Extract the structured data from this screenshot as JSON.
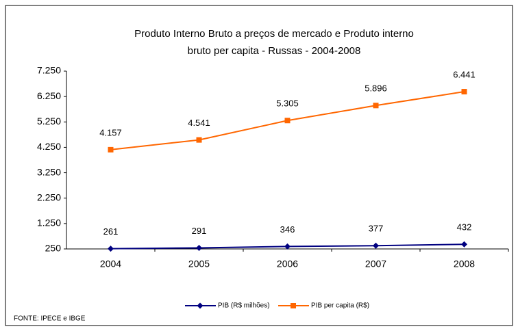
{
  "chart_data": {
    "type": "line",
    "title": [
      "Produto Interno Bruto a preços de mercado e  Produto interno",
      "bruto per capita - Russas - 2004-2008"
    ],
    "categories": [
      "2004",
      "2005",
      "2006",
      "2007",
      "2008"
    ],
    "series": [
      {
        "name": "PIB (R$ milhões)",
        "color": "#000080",
        "marker": "diamond",
        "values": [
          261,
          291,
          346,
          377,
          432
        ]
      },
      {
        "name": "PIB per capita (R$)",
        "color": "#ff6600",
        "marker": "square",
        "values": [
          4157,
          4541,
          5305,
          5896,
          6441
        ],
        "value_labels": [
          "4.157",
          "4.541",
          "5.305",
          "5.896",
          "6.441"
        ]
      }
    ],
    "ylim": [
      250,
      7250
    ],
    "yticks": [
      250,
      {
        "value": 1250,
        "label": "1.250"
      },
      {
        "value": 2250,
        "label": "2.250"
      },
      {
        "value": 3250,
        "label": "3.250"
      },
      {
        "value": 4250,
        "label": "4.250"
      },
      {
        "value": 5250,
        "label": "5.250"
      },
      {
        "value": 6250,
        "label": "6.250"
      },
      {
        "value": 7250,
        "label": "7.250"
      }
    ],
    "legend": "bottom",
    "source": "FONTE: IPECE e IBGE"
  }
}
